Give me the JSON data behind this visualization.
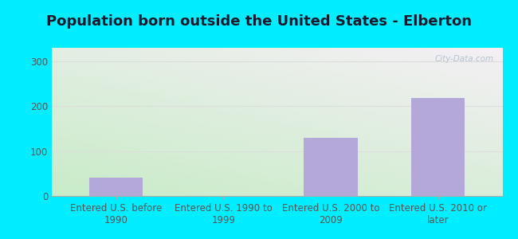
{
  "title": "Population born outside the United States - Elberton",
  "categories": [
    "Entered U.S. before\n1990",
    "Entered U.S. 1990 to\n1999",
    "Entered U.S. 2000 to\n2009",
    "Entered U.S. 2010 or\nlater"
  ],
  "values": [
    40,
    0,
    130,
    218
  ],
  "bar_color": "#b3a8d8",
  "ylim": [
    0,
    330
  ],
  "yticks": [
    0,
    100,
    200,
    300
  ],
  "background_outer": "#00eeff",
  "grid_color": "#dddddd",
  "title_fontsize": 13,
  "tick_fontsize": 8.5,
  "watermark": "City-Data.com"
}
